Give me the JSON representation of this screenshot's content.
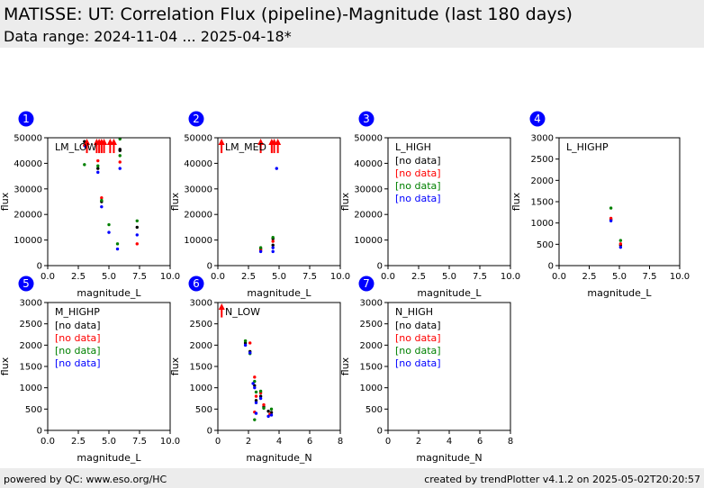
{
  "header": {
    "title": "MATISSE: UT: Correlation Flux (pipeline)-Magnitude (last 180 days)",
    "subtitle": "Data range: 2024-11-04 ... 2025-04-18*"
  },
  "footer": {
    "left": "powered by QC: www.eso.org/HC",
    "right": "created by trendPlotter v4.1.2 on 2025-05-02T20:20:57"
  },
  "colors": {
    "badge": "#0000ff",
    "black": "#000000",
    "red": "#ff0000",
    "green": "#008000",
    "blue": "#0000ff"
  },
  "chart_data": [
    {
      "id": 1,
      "type": "scatter",
      "label": "LM_LOW",
      "xlabel": "magnitude_L",
      "ylabel": "flux",
      "xlim": [
        0,
        10
      ],
      "ylim": [
        0,
        50000
      ],
      "xticks": [
        "0.0",
        "2.5",
        "5.0",
        "7.5",
        "10.0"
      ],
      "yticks": [
        "0",
        "10000",
        "20000",
        "30000",
        "40000",
        "50000"
      ],
      "no_data": [],
      "series": [
        {
          "color": "black",
          "points": [
            [
              3.0,
              48500
            ],
            [
              5.9,
              45500
            ],
            [
              5.9,
              45000
            ],
            [
              7.3,
              15000
            ],
            [
              4.1,
              38000
            ],
            [
              4.4,
              25000
            ]
          ]
        },
        {
          "color": "red",
          "points": [
            [
              3.0,
              47000
            ],
            [
              3.2,
              47500
            ],
            [
              5.9,
              40500
            ],
            [
              7.3,
              8500
            ],
            [
              4.4,
              26500
            ],
            [
              4.1,
              41000
            ]
          ]
        },
        {
          "color": "green",
          "points": [
            [
              3.0,
              39500
            ],
            [
              5.9,
              49500
            ],
            [
              5.9,
              43000
            ],
            [
              7.3,
              17500
            ],
            [
              5.0,
              16000
            ],
            [
              4.4,
              25500
            ],
            [
              4.1,
              39000
            ],
            [
              5.7,
              8500
            ]
          ]
        },
        {
          "color": "blue",
          "points": [
            [
              5.9,
              38000
            ],
            [
              7.3,
              12000
            ],
            [
              4.1,
              36500
            ],
            [
              4.4,
              23000
            ],
            [
              5.0,
              13000
            ],
            [
              5.7,
              6500
            ],
            [
              3.1,
              46500
            ]
          ]
        }
      ],
      "limits": [
        {
          "x": 3.2,
          "y": 44000
        },
        {
          "x": 4.0,
          "y": 44000
        },
        {
          "x": 4.2,
          "y": 44000
        },
        {
          "x": 4.4,
          "y": 44000
        },
        {
          "x": 4.6,
          "y": 44000
        },
        {
          "x": 5.1,
          "y": 44000
        },
        {
          "x": 5.4,
          "y": 44000
        }
      ]
    },
    {
      "id": 2,
      "type": "scatter",
      "label": "LM_MED",
      "xlabel": "magnitude_L",
      "ylabel": "flux",
      "xlim": [
        0,
        10
      ],
      "ylim": [
        0,
        50000
      ],
      "xticks": [
        "0.0",
        "2.5",
        "5.0",
        "7.5",
        "10.0"
      ],
      "yticks": [
        "0",
        "10000",
        "20000",
        "30000",
        "40000",
        "50000"
      ],
      "no_data": [],
      "series": [
        {
          "color": "black",
          "points": [
            [
              3.5,
              6500
            ],
            [
              4.5,
              8000
            ],
            [
              4.5,
              10500
            ]
          ]
        },
        {
          "color": "red",
          "points": [
            [
              3.5,
              6000
            ],
            [
              4.5,
              9500
            ]
          ]
        },
        {
          "color": "green",
          "points": [
            [
              3.5,
              7000
            ],
            [
              4.5,
              11000
            ]
          ]
        },
        {
          "color": "blue",
          "points": [
            [
              3.5,
              5500
            ],
            [
              4.5,
              5500
            ],
            [
              4.8,
              38000
            ],
            [
              4.5,
              7000
            ]
          ]
        }
      ],
      "limits": [
        {
          "x": 0.3,
          "y": 44000
        },
        {
          "x": 3.5,
          "y": 44000
        },
        {
          "x": 4.4,
          "y": 44000
        },
        {
          "x": 4.6,
          "y": 44000
        },
        {
          "x": 4.9,
          "y": 44000
        }
      ]
    },
    {
      "id": 3,
      "type": "scatter",
      "label": "L_HIGH",
      "xlabel": "magnitude_L",
      "ylabel": "flux",
      "xlim": [
        0,
        10
      ],
      "ylim": [
        0,
        50000
      ],
      "xticks": [
        "0.0",
        "2.5",
        "5.0",
        "7.5",
        "10.0"
      ],
      "yticks": [
        "0",
        "10000",
        "20000",
        "30000",
        "40000",
        "50000"
      ],
      "no_data": [
        {
          "color": "black",
          "text": "[no data]"
        },
        {
          "color": "red",
          "text": "[no data]"
        },
        {
          "color": "green",
          "text": "[no data]"
        },
        {
          "color": "blue",
          "text": "[no data]"
        }
      ],
      "series": [],
      "limits": []
    },
    {
      "id": 4,
      "type": "scatter",
      "label": "L_HIGHP",
      "xlabel": "magnitude_L",
      "ylabel": "flux",
      "xlim": [
        0,
        10
      ],
      "ylim": [
        0,
        3000
      ],
      "xticks": [
        "0.0",
        "2.5",
        "5.0",
        "7.5",
        "10.0"
      ],
      "yticks": [
        "0",
        "500",
        "1000",
        "1500",
        "2000",
        "2500",
        "3000"
      ],
      "no_data": [],
      "series": [
        {
          "color": "black",
          "points": [
            [
              4.3,
              1080
            ],
            [
              5.1,
              480
            ]
          ]
        },
        {
          "color": "red",
          "points": [
            [
              4.3,
              1110
            ],
            [
              5.1,
              510
            ]
          ]
        },
        {
          "color": "green",
          "points": [
            [
              4.3,
              1350
            ],
            [
              5.1,
              590
            ]
          ]
        },
        {
          "color": "blue",
          "points": [
            [
              4.3,
              1050
            ],
            [
              5.1,
              430
            ]
          ]
        }
      ],
      "limits": []
    },
    {
      "id": 5,
      "type": "scatter",
      "label": "M_HIGHP",
      "xlabel": "magnitude_L",
      "ylabel": "flux",
      "xlim": [
        0,
        10
      ],
      "ylim": [
        0,
        3000
      ],
      "xticks": [
        "0.0",
        "2.5",
        "5.0",
        "7.5",
        "10.0"
      ],
      "yticks": [
        "0",
        "500",
        "1000",
        "1500",
        "2000",
        "2500",
        "3000"
      ],
      "no_data": [
        {
          "color": "black",
          "text": "[no data]"
        },
        {
          "color": "red",
          "text": "[no data]"
        },
        {
          "color": "green",
          "text": "[no data]"
        },
        {
          "color": "blue",
          "text": "[no data]"
        }
      ],
      "series": [],
      "limits": []
    },
    {
      "id": 6,
      "type": "scatter",
      "label": "N_LOW",
      "xlabel": "magnitude_N",
      "ylabel": "flux",
      "xlim": [
        0,
        8
      ],
      "ylim": [
        0,
        3000
      ],
      "xticks": [
        "0",
        "2",
        "4",
        "6",
        "8"
      ],
      "yticks": [
        "0",
        "500",
        "1000",
        "1500",
        "2000",
        "2500",
        "3000"
      ],
      "no_data": [],
      "series": [
        {
          "color": "black",
          "points": [
            [
              1.8,
              2050
            ],
            [
              2.1,
              1850
            ],
            [
              2.4,
              1050
            ],
            [
              2.5,
              700
            ],
            [
              2.8,
              800
            ],
            [
              3.0,
              550
            ],
            [
              3.3,
              450
            ],
            [
              3.5,
              420
            ]
          ]
        },
        {
          "color": "red",
          "points": [
            [
              2.1,
              2050
            ],
            [
              2.4,
              1250
            ],
            [
              2.5,
              800
            ],
            [
              2.8,
              880
            ],
            [
              3.0,
              600
            ],
            [
              3.4,
              380
            ],
            [
              2.4,
              430
            ]
          ]
        },
        {
          "color": "green",
          "points": [
            [
              1.8,
              2100
            ],
            [
              2.1,
              1800
            ],
            [
              2.4,
              1150
            ],
            [
              2.5,
              900
            ],
            [
              2.8,
              920
            ],
            [
              3.0,
              520
            ],
            [
              3.5,
              500
            ],
            [
              2.4,
              250
            ]
          ]
        },
        {
          "color": "blue",
          "points": [
            [
              1.8,
              2000
            ],
            [
              2.1,
              1820
            ],
            [
              2.3,
              1100
            ],
            [
              2.5,
              650
            ],
            [
              2.8,
              750
            ],
            [
              3.3,
              330
            ],
            [
              3.5,
              360
            ],
            [
              2.5,
              400
            ],
            [
              2.4,
              1000
            ]
          ]
        }
      ],
      "limits": [
        {
          "x": 0.25,
          "y": 2650
        }
      ]
    },
    {
      "id": 7,
      "type": "scatter",
      "label": "N_HIGH",
      "xlabel": "magnitude_N",
      "ylabel": "flux",
      "xlim": [
        0,
        8
      ],
      "ylim": [
        0,
        3000
      ],
      "xticks": [
        "0",
        "2",
        "4",
        "6",
        "8"
      ],
      "yticks": [
        "0",
        "500",
        "1000",
        "1500",
        "2000",
        "2500",
        "3000"
      ],
      "no_data": [
        {
          "color": "black",
          "text": "[no data]"
        },
        {
          "color": "red",
          "text": "[no data]"
        },
        {
          "color": "green",
          "text": "[no data]"
        },
        {
          "color": "blue",
          "text": "[no data]"
        }
      ],
      "series": [],
      "limits": []
    }
  ]
}
